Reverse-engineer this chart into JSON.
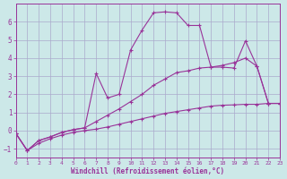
{
  "xlabel": "Windchill (Refroidissement éolien,°C)",
  "background_color": "#cce8e8",
  "grid_color": "#aaaacc",
  "line_color": "#993399",
  "xlim": [
    0,
    23
  ],
  "ylim": [
    -1.5,
    7.0
  ],
  "xticks": [
    0,
    1,
    2,
    3,
    4,
    5,
    6,
    7,
    8,
    9,
    10,
    11,
    12,
    13,
    14,
    15,
    16,
    17,
    18,
    19,
    20,
    21,
    22,
    23
  ],
  "yticks": [
    -1,
    0,
    1,
    2,
    3,
    4,
    5,
    6
  ],
  "line1_x": [
    0,
    1,
    2,
    3,
    4,
    5,
    6,
    7,
    8,
    9,
    10,
    11,
    12,
    13,
    14,
    15,
    16,
    17,
    18,
    19,
    20,
    21,
    22,
    23
  ],
  "line1_y": [
    -0.15,
    -1.1,
    -0.7,
    -0.45,
    -0.25,
    -0.1,
    0.0,
    0.08,
    0.2,
    0.35,
    0.5,
    0.65,
    0.8,
    0.95,
    1.05,
    1.15,
    1.25,
    1.35,
    1.4,
    1.42,
    1.45,
    1.45,
    1.5,
    1.5
  ],
  "line2_x": [
    0,
    1,
    2,
    3,
    4,
    5,
    6,
    7,
    8,
    9,
    10,
    11,
    12,
    13,
    14,
    15,
    16,
    17,
    18,
    19,
    20,
    21,
    22,
    23
  ],
  "line2_y": [
    -0.15,
    -1.1,
    -0.55,
    -0.35,
    -0.1,
    0.05,
    0.15,
    0.5,
    0.85,
    1.2,
    1.6,
    2.0,
    2.5,
    2.85,
    3.2,
    3.3,
    3.45,
    3.5,
    3.6,
    3.75,
    4.0,
    3.55,
    1.5,
    1.5
  ],
  "line3_x": [
    0,
    1,
    2,
    3,
    4,
    5,
    6,
    7,
    8,
    9,
    10,
    11,
    12,
    13,
    14,
    15,
    16,
    17,
    18,
    19,
    20,
    21,
    22,
    23
  ],
  "line3_y": [
    -0.15,
    -1.1,
    -0.55,
    -0.35,
    -0.1,
    0.05,
    0.15,
    3.15,
    1.8,
    2.0,
    4.45,
    5.55,
    6.5,
    6.55,
    6.5,
    5.8,
    5.8,
    3.5,
    3.5,
    3.45,
    4.95,
    3.55,
    1.5,
    1.5
  ]
}
